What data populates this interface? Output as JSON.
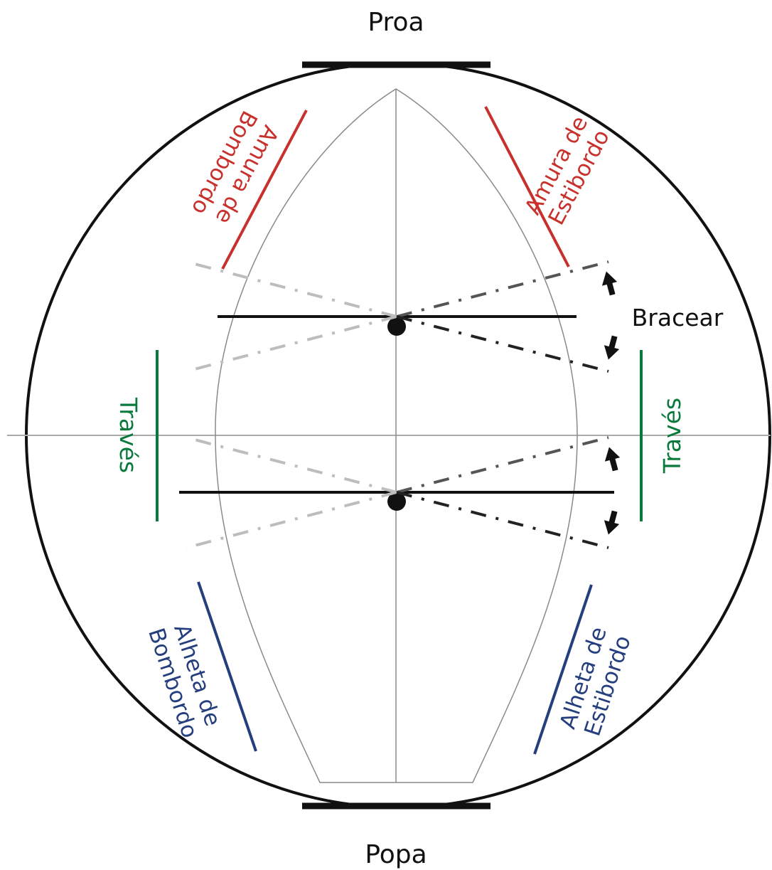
{
  "labels": {
    "bow": "Proa",
    "stern": "Popa",
    "brace": "Bracear",
    "port_bow": [
      "Amura de",
      "Bombordo"
    ],
    "starboard_bow": [
      "Amura de",
      "Estibordo"
    ],
    "beam_port": "Través",
    "beam_starboard": "Través",
    "port_quarter": [
      "Alheta de",
      "Bombordo"
    ],
    "starboard_quarter": [
      "Alheta de",
      "Estibordo"
    ]
  },
  "colors": {
    "bow_sector": "#c8302c",
    "beam_sector": "#0a7a3c",
    "quarter_sector": "#253f7e",
    "outline": "#111111",
    "hull": "#8a8a8a",
    "dash_light": "#bdbdbd",
    "dash_dark": "#333333"
  }
}
